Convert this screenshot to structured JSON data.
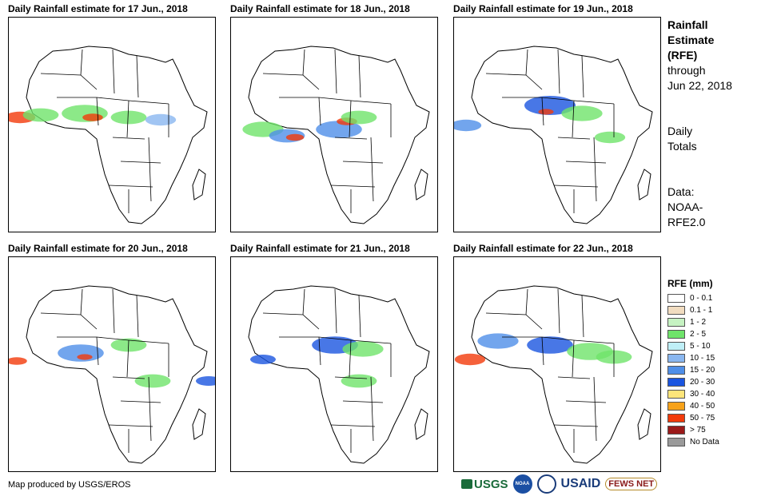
{
  "panels": [
    {
      "title": "Daily Rainfall estimate for 17 Jun., 2018"
    },
    {
      "title": "Daily Rainfall estimate for 18 Jun., 2018"
    },
    {
      "title": "Daily Rainfall estimate for 19 Jun., 2018"
    },
    {
      "title": "Daily Rainfall estimate for 20 Jun., 2018"
    },
    {
      "title": "Daily Rainfall estimate for 21 Jun., 2018"
    },
    {
      "title": "Daily Rainfall estimate for 22 Jun., 2018"
    }
  ],
  "side": {
    "title_line1": "Rainfall",
    "title_line2": "Estimate",
    "title_line3": "(RFE)",
    "through": "through",
    "date": "Jun 22, 2018",
    "daily1": "Daily",
    "daily2": "Totals",
    "data1": "Data:",
    "data2": "NOAA-",
    "data3": "RFE2.0"
  },
  "legend": {
    "title": "RFE (mm)",
    "items": [
      {
        "label": "0 - 0.1",
        "color": "#ffffff"
      },
      {
        "label": "0.1 - 1",
        "color": "#f1dcc0"
      },
      {
        "label": "1 - 2",
        "color": "#c6f2c2"
      },
      {
        "label": "2 - 5",
        "color": "#6fe36a"
      },
      {
        "label": "5 - 10",
        "color": "#bfeff7"
      },
      {
        "label": "10 - 15",
        "color": "#8ab7f0"
      },
      {
        "label": "15 - 20",
        "color": "#4f8fe8"
      },
      {
        "label": "20 - 30",
        "color": "#1a55e0"
      },
      {
        "label": "30 - 40",
        "color": "#fde57a"
      },
      {
        "label": "40 - 50",
        "color": "#f7a21a"
      },
      {
        "label": "50 - 75",
        "color": "#f23a0a"
      },
      {
        "label": "> 75",
        "color": "#9b1a1a"
      },
      {
        "label": "No Data",
        "color": "#9a9a9a"
      }
    ]
  },
  "credit": "Map produced by USGS/EROS",
  "logos": {
    "usgs": "USGS",
    "noaa": "NOAA",
    "usaid": "USAID",
    "fews": "FEWS NET"
  }
}
